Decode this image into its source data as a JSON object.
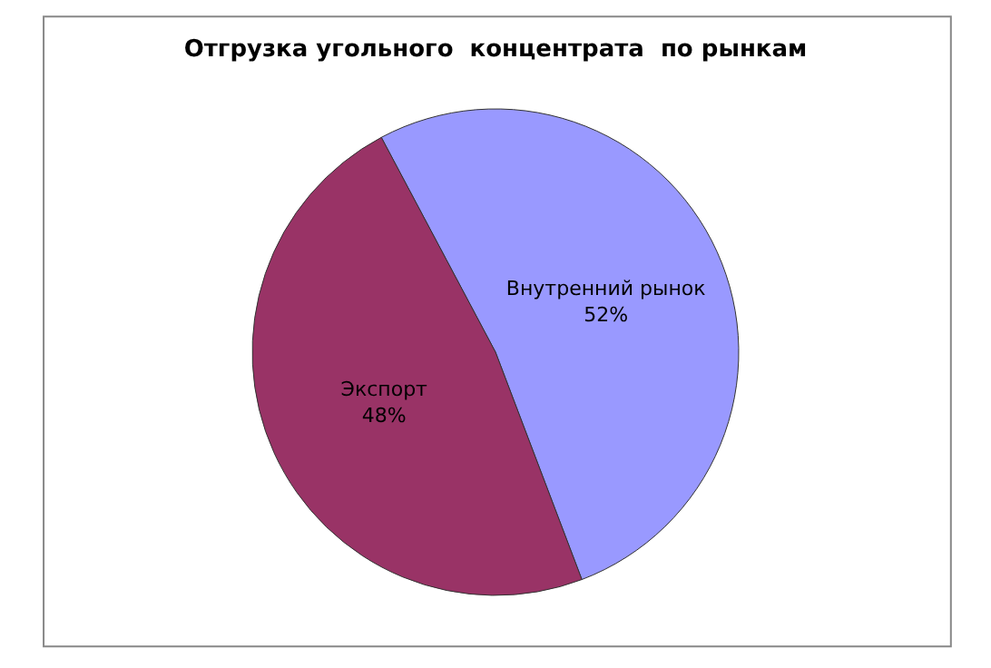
{
  "chart_data": {
    "type": "pie",
    "title": "Отгрузка угольного  концентрата  по рынкам",
    "categories": [
      "Внутренний рынок",
      "Экспорт"
    ],
    "values": [
      52,
      48
    ],
    "value_labels": [
      "52%",
      "48%"
    ],
    "colors": [
      "#9999ff",
      "#993366"
    ],
    "legend": false
  }
}
